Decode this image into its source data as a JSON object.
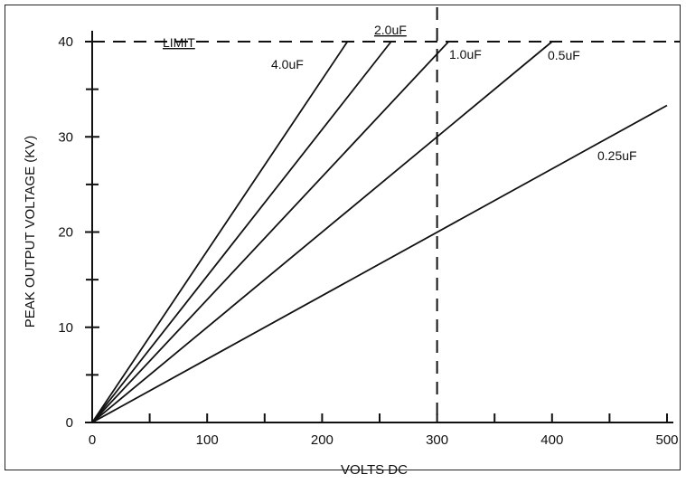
{
  "chart_data": {
    "type": "line",
    "title": "",
    "xlabel": "VOLTS DC",
    "ylabel": "PEAK OUTPUT VOLTAGE (KV)",
    "xlim": [
      0,
      500
    ],
    "ylim": [
      0,
      40
    ],
    "x_ticks": [
      "0",
      "100",
      "200",
      "300",
      "400",
      "500"
    ],
    "y_ticks": [
      "0",
      "10",
      "20",
      "30",
      "40"
    ],
    "grid": false,
    "series": [
      {
        "name": "4.0uF",
        "x": [
          0,
          222
        ],
        "y": [
          0,
          40
        ]
      },
      {
        "name": "2.0uF",
        "x": [
          0,
          260
        ],
        "y": [
          0,
          40
        ]
      },
      {
        "name": "1.0uF",
        "x": [
          0,
          310
        ],
        "y": [
          0,
          40
        ]
      },
      {
        "name": "0.5uF",
        "x": [
          0,
          400
        ],
        "y": [
          0,
          40
        ]
      },
      {
        "name": "0.25uF",
        "x": [
          0,
          500
        ],
        "y": [
          0,
          33.3
        ]
      }
    ],
    "reference_lines": {
      "limit": {
        "label": "LIMIT",
        "y": 40
      },
      "vertical": {
        "x": 300
      }
    }
  }
}
